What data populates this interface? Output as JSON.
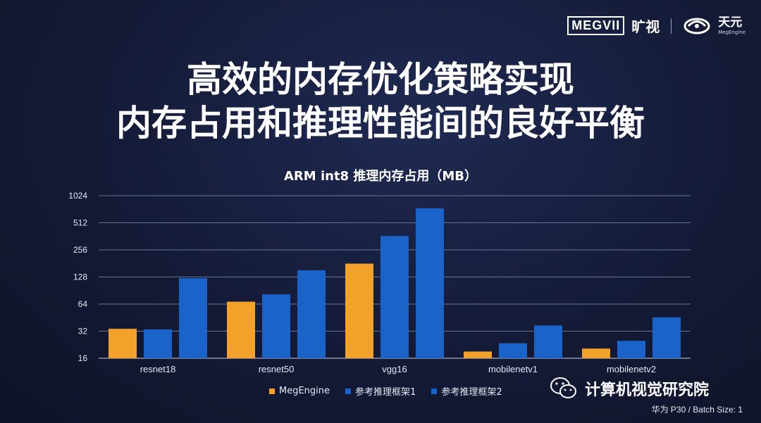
{
  "logo": {
    "brand_mark": "MEGVII",
    "brand_cn": "旷视",
    "product_cn": "天元",
    "product_en": "MegEngine"
  },
  "title_lines": [
    "高效的内存优化策略实现",
    "内存占用和推理性能间的良好平衡"
  ],
  "chart_data": {
    "type": "bar",
    "title": "ARM int8 推理内存占用（MB）",
    "xlabel": "",
    "ylabel": "",
    "yscale": "log2",
    "ylim": [
      16,
      1024
    ],
    "yticks": [
      16,
      32,
      64,
      128,
      256,
      512,
      1024
    ],
    "grid": true,
    "legend_position": "bottom",
    "categories": [
      "resnet18",
      "resnet50",
      "vgg16",
      "mobilenetv1",
      "mobilenetv2"
    ],
    "series": [
      {
        "name": "MegEngine",
        "color": "#f2a12b",
        "values": [
          34,
          68,
          180,
          19,
          20.5
        ]
      },
      {
        "name": "参考推理框架1",
        "color": "#1a63c9",
        "values": [
          33.5,
          82,
          365,
          23.5,
          25
        ]
      },
      {
        "name": "参考推理框架2",
        "color": "#1a63c9",
        "values": [
          124,
          152,
          740,
          37,
          45.5
        ]
      }
    ]
  },
  "watermark": {
    "icon": "wechat-icon",
    "text": "计算机视觉研究院"
  },
  "footnote": "华为 P30 / Batch Size: 1"
}
